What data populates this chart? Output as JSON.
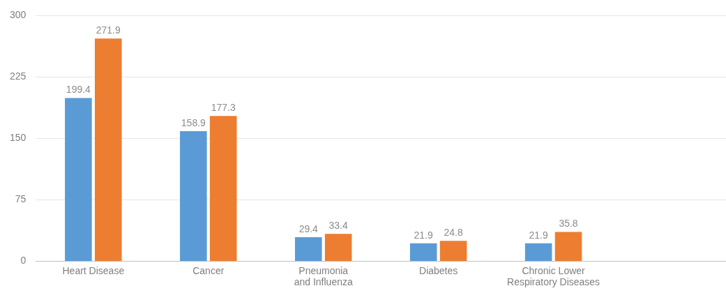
{
  "chart_data": {
    "type": "bar",
    "categories": [
      "Heart Disease",
      "Cancer",
      "Pneumonia and Influenza",
      "Diabetes",
      "Chronic Lower Respiratory Diseases",
      null
    ],
    "series": [
      {
        "color": "#5b9bd5",
        "values": [
          199.4,
          158.9,
          29.4,
          21.9,
          21.9,
          null
        ]
      },
      {
        "color": "#ed7d31",
        "values": [
          271.9,
          177.3,
          33.4,
          24.8,
          35.8,
          null
        ]
      }
    ],
    "ylim": [
      0,
      300
    ],
    "yticks": [
      0,
      75,
      150,
      225,
      300
    ],
    "grid": "y",
    "legend": false,
    "data_labels": true
  }
}
